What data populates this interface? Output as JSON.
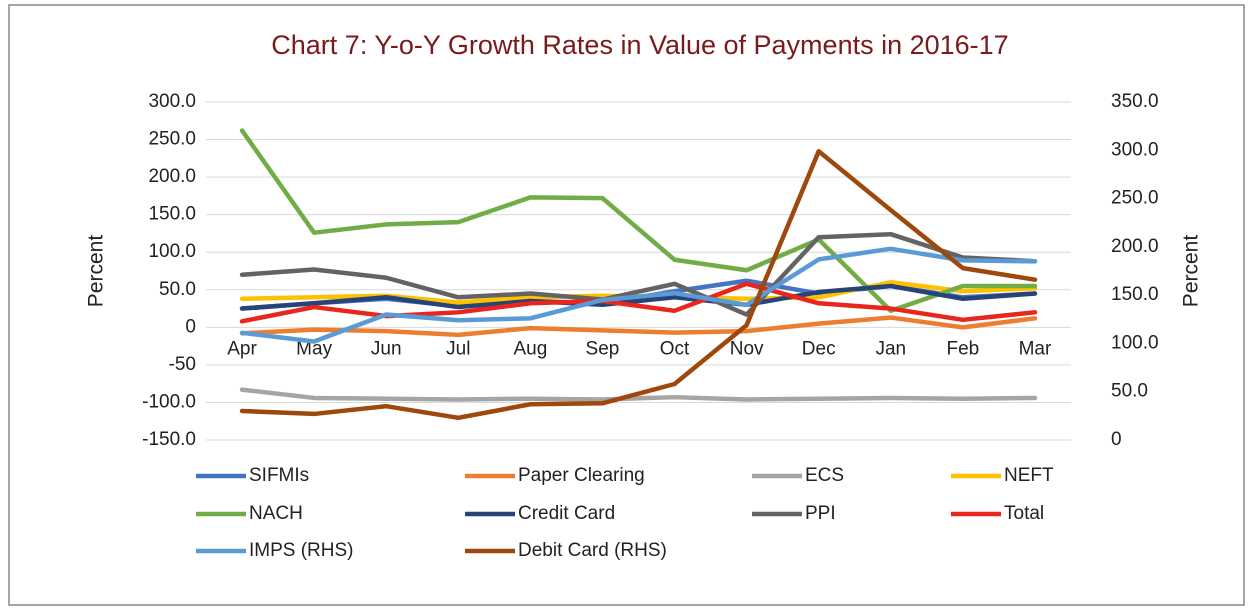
{
  "chart_data": {
    "type": "line",
    "title": "Chart 7: Y-o-Y Growth Rates in Value of Payments in 2016-17",
    "y_label": "Percent",
    "y2_label": "Percent",
    "categories": [
      "Apr",
      "May",
      "Jun",
      "Jul",
      "Aug",
      "Sep",
      "Oct",
      "Nov",
      "Dec",
      "Jan",
      "Feb",
      "Mar"
    ],
    "ylim": [
      -150,
      300
    ],
    "yticks": [
      {
        "value": -150,
        "label": "-150.0"
      },
      {
        "value": -100,
        "label": "-100.0"
      },
      -50,
      0,
      {
        "value": 50,
        "label": "50.0"
      },
      {
        "value": 100,
        "label": "100.0"
      },
      {
        "value": 150,
        "label": "150.0"
      },
      {
        "value": 200,
        "label": "200.0"
      },
      {
        "value": 250,
        "label": "250.0"
      },
      {
        "value": 300,
        "label": "300.0"
      }
    ],
    "y2lim": [
      0,
      350
    ],
    "y2ticks": [
      0,
      {
        "value": 50,
        "label": "50.0"
      },
      {
        "value": 100,
        "label": "100.0"
      },
      {
        "value": 150,
        "label": "150.0"
      },
      {
        "value": 200,
        "label": "200.0"
      },
      {
        "value": 250,
        "label": "250.0"
      },
      {
        "value": 300,
        "label": "300.0"
      },
      {
        "value": 350,
        "label": "350.0"
      }
    ],
    "grid": true,
    "legend": "bottom",
    "series": [
      {
        "name": "SIFMIs",
        "color": "#4472c4",
        "values": [
          25,
          32,
          38,
          28,
          35,
          32,
          48,
          62,
          45,
          55,
          40,
          45
        ]
      },
      {
        "name": "Paper Clearing",
        "color": "#ed7d31",
        "values": [
          -8,
          -3,
          -5,
          -10,
          -1,
          -4,
          -7,
          -5,
          5,
          13,
          0,
          12
        ]
      },
      {
        "name": "ECS",
        "color": "#a5a5a5",
        "values": [
          -83,
          -94,
          -95,
          -96,
          -95,
          -96,
          -93,
          -96,
          -95,
          -94,
          -95,
          -94
        ]
      },
      {
        "name": "NEFT",
        "color": "#ffc000",
        "values": [
          38,
          40,
          42,
          33,
          40,
          42,
          40,
          38,
          40,
          60,
          48,
          52
        ]
      },
      {
        "name": "NACH",
        "color": "#70ad47",
        "values": [
          262,
          126,
          137,
          140,
          173,
          172,
          90,
          76,
          117,
          22,
          55,
          55
        ]
      },
      {
        "name": "Credit Card",
        "color": "#264478",
        "values": [
          25,
          32,
          40,
          27,
          35,
          30,
          40,
          30,
          47,
          55,
          38,
          45
        ]
      },
      {
        "name": "PPI",
        "color": "#636363",
        "values": [
          70,
          77,
          66,
          40,
          45,
          37,
          58,
          17,
          120,
          124,
          93,
          88
        ]
      },
      {
        "name": "Total",
        "color": "#e8261e",
        "values": [
          8,
          27,
          15,
          20,
          32,
          35,
          22,
          58,
          32,
          25,
          10,
          20
        ]
      },
      {
        "name": "IMPS (RHS)",
        "color": "#5b9bd5",
        "axis": "y2",
        "values": [
          111,
          102,
          130,
          124,
          126,
          145,
          152,
          140,
          187,
          198,
          186,
          185
        ]
      },
      {
        "name": "Debit Card (RHS)",
        "color": "#9e480e",
        "axis": "y2",
        "values": [
          30,
          27,
          35,
          23,
          37,
          38,
          58,
          119,
          299,
          238,
          178,
          166
        ]
      }
    ]
  }
}
